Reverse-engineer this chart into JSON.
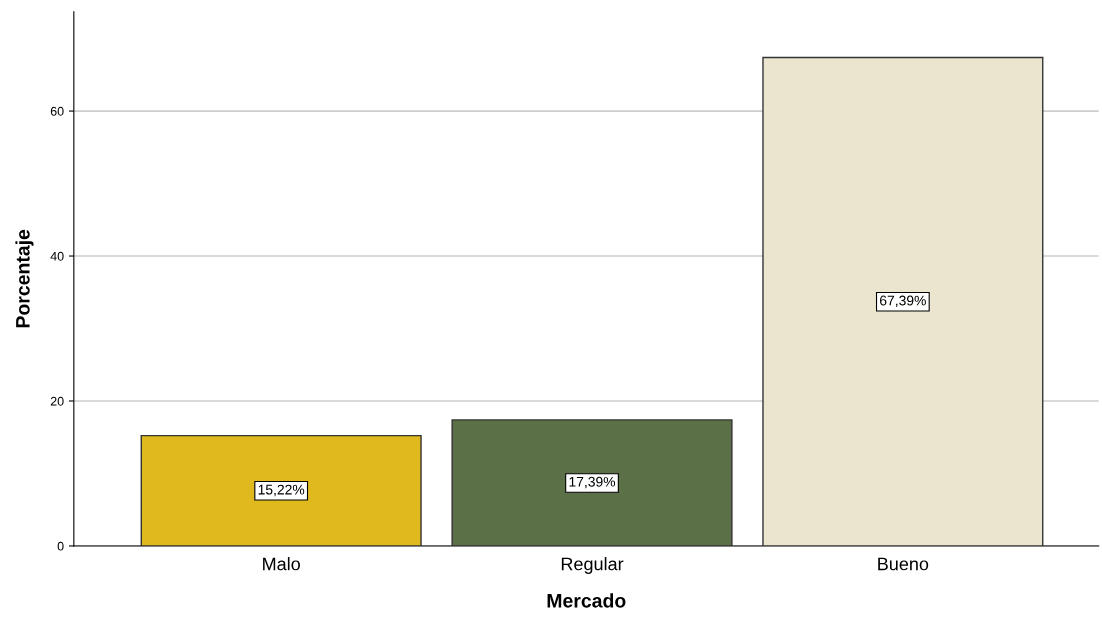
{
  "chart_data": {
    "type": "bar",
    "xlabel": "Mercado",
    "ylabel": "Porcentaje",
    "categories": [
      "Malo",
      "Regular",
      "Bueno"
    ],
    "values": [
      15.22,
      17.39,
      67.39
    ],
    "colors": [
      "#e0b91f",
      "#5b7046",
      "#ebe4cf"
    ],
    "value_labels": [
      "15,22%",
      "17,39%",
      "67,39%"
    ],
    "ylim": [
      0,
      73.7
    ],
    "yticks": [
      0,
      20,
      40,
      60
    ],
    "grid": "y",
    "legend": false
  }
}
